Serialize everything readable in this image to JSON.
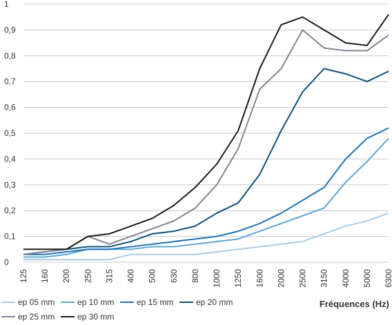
{
  "chart_data": {
    "type": "line",
    "x_categories": [
      "125",
      "160",
      "200",
      "250",
      "315",
      "400",
      "500",
      "630",
      "800",
      "1000",
      "1250",
      "1600",
      "2000",
      "2500",
      "3150",
      "4000",
      "5000",
      "6300"
    ],
    "xlabel": "Fréquences (Hz)",
    "ylabel": "",
    "ylim": [
      0,
      1
    ],
    "y_ticks": [
      0,
      0.1,
      0.2,
      0.3,
      0.4,
      0.5,
      0.6,
      0.7,
      0.8,
      0.9,
      1
    ],
    "y_tick_labels": [
      "0",
      "0,1",
      "0,2",
      "0,3",
      "0,4",
      "0,5",
      "0,6",
      "0,7",
      "0,8",
      "0,9",
      "1"
    ],
    "grid": "horizontal",
    "legend_position": "bottom-left",
    "series": [
      {
        "name": "ep 05 mm",
        "color": "#a9cbe6",
        "values": [
          0.01,
          0.01,
          0.01,
          0.01,
          0.01,
          0.03,
          0.03,
          0.03,
          0.03,
          0.04,
          0.05,
          0.06,
          0.07,
          0.08,
          0.11,
          0.14,
          0.16,
          0.19
        ]
      },
      {
        "name": "ep 10 mm",
        "color": "#5ea6d6",
        "values": [
          0.02,
          0.02,
          0.03,
          0.05,
          0.05,
          0.05,
          0.06,
          0.06,
          0.07,
          0.08,
          0.09,
          0.12,
          0.15,
          0.18,
          0.21,
          0.31,
          0.39,
          0.48
        ]
      },
      {
        "name": "ep 15 mm",
        "color": "#1f73b7",
        "values": [
          0.03,
          0.03,
          0.04,
          0.05,
          0.05,
          0.06,
          0.07,
          0.08,
          0.09,
          0.1,
          0.12,
          0.15,
          0.19,
          0.24,
          0.29,
          0.4,
          0.48,
          0.52
        ]
      },
      {
        "name": "ep 20 mm",
        "color": "#0d4f7c",
        "values": [
          0.03,
          0.04,
          0.05,
          0.06,
          0.06,
          0.08,
          0.11,
          0.12,
          0.14,
          0.19,
          0.23,
          0.34,
          0.51,
          0.66,
          0.75,
          0.73,
          0.7,
          0.74
        ]
      },
      {
        "name": "ep 25 mm",
        "color": "#7f8595",
        "values": [
          0.03,
          0.04,
          0.05,
          0.1,
          0.07,
          0.1,
          0.13,
          0.16,
          0.21,
          0.3,
          0.44,
          0.67,
          0.75,
          0.9,
          0.83,
          0.82,
          0.82,
          0.88
        ]
      },
      {
        "name": "ep 30 mm",
        "color": "#1a1a1a",
        "values": [
          0.05,
          0.05,
          0.05,
          0.1,
          0.11,
          0.14,
          0.17,
          0.22,
          0.29,
          0.38,
          0.51,
          0.75,
          0.92,
          0.95,
          0.9,
          0.85,
          0.84,
          0.96
        ]
      }
    ]
  }
}
